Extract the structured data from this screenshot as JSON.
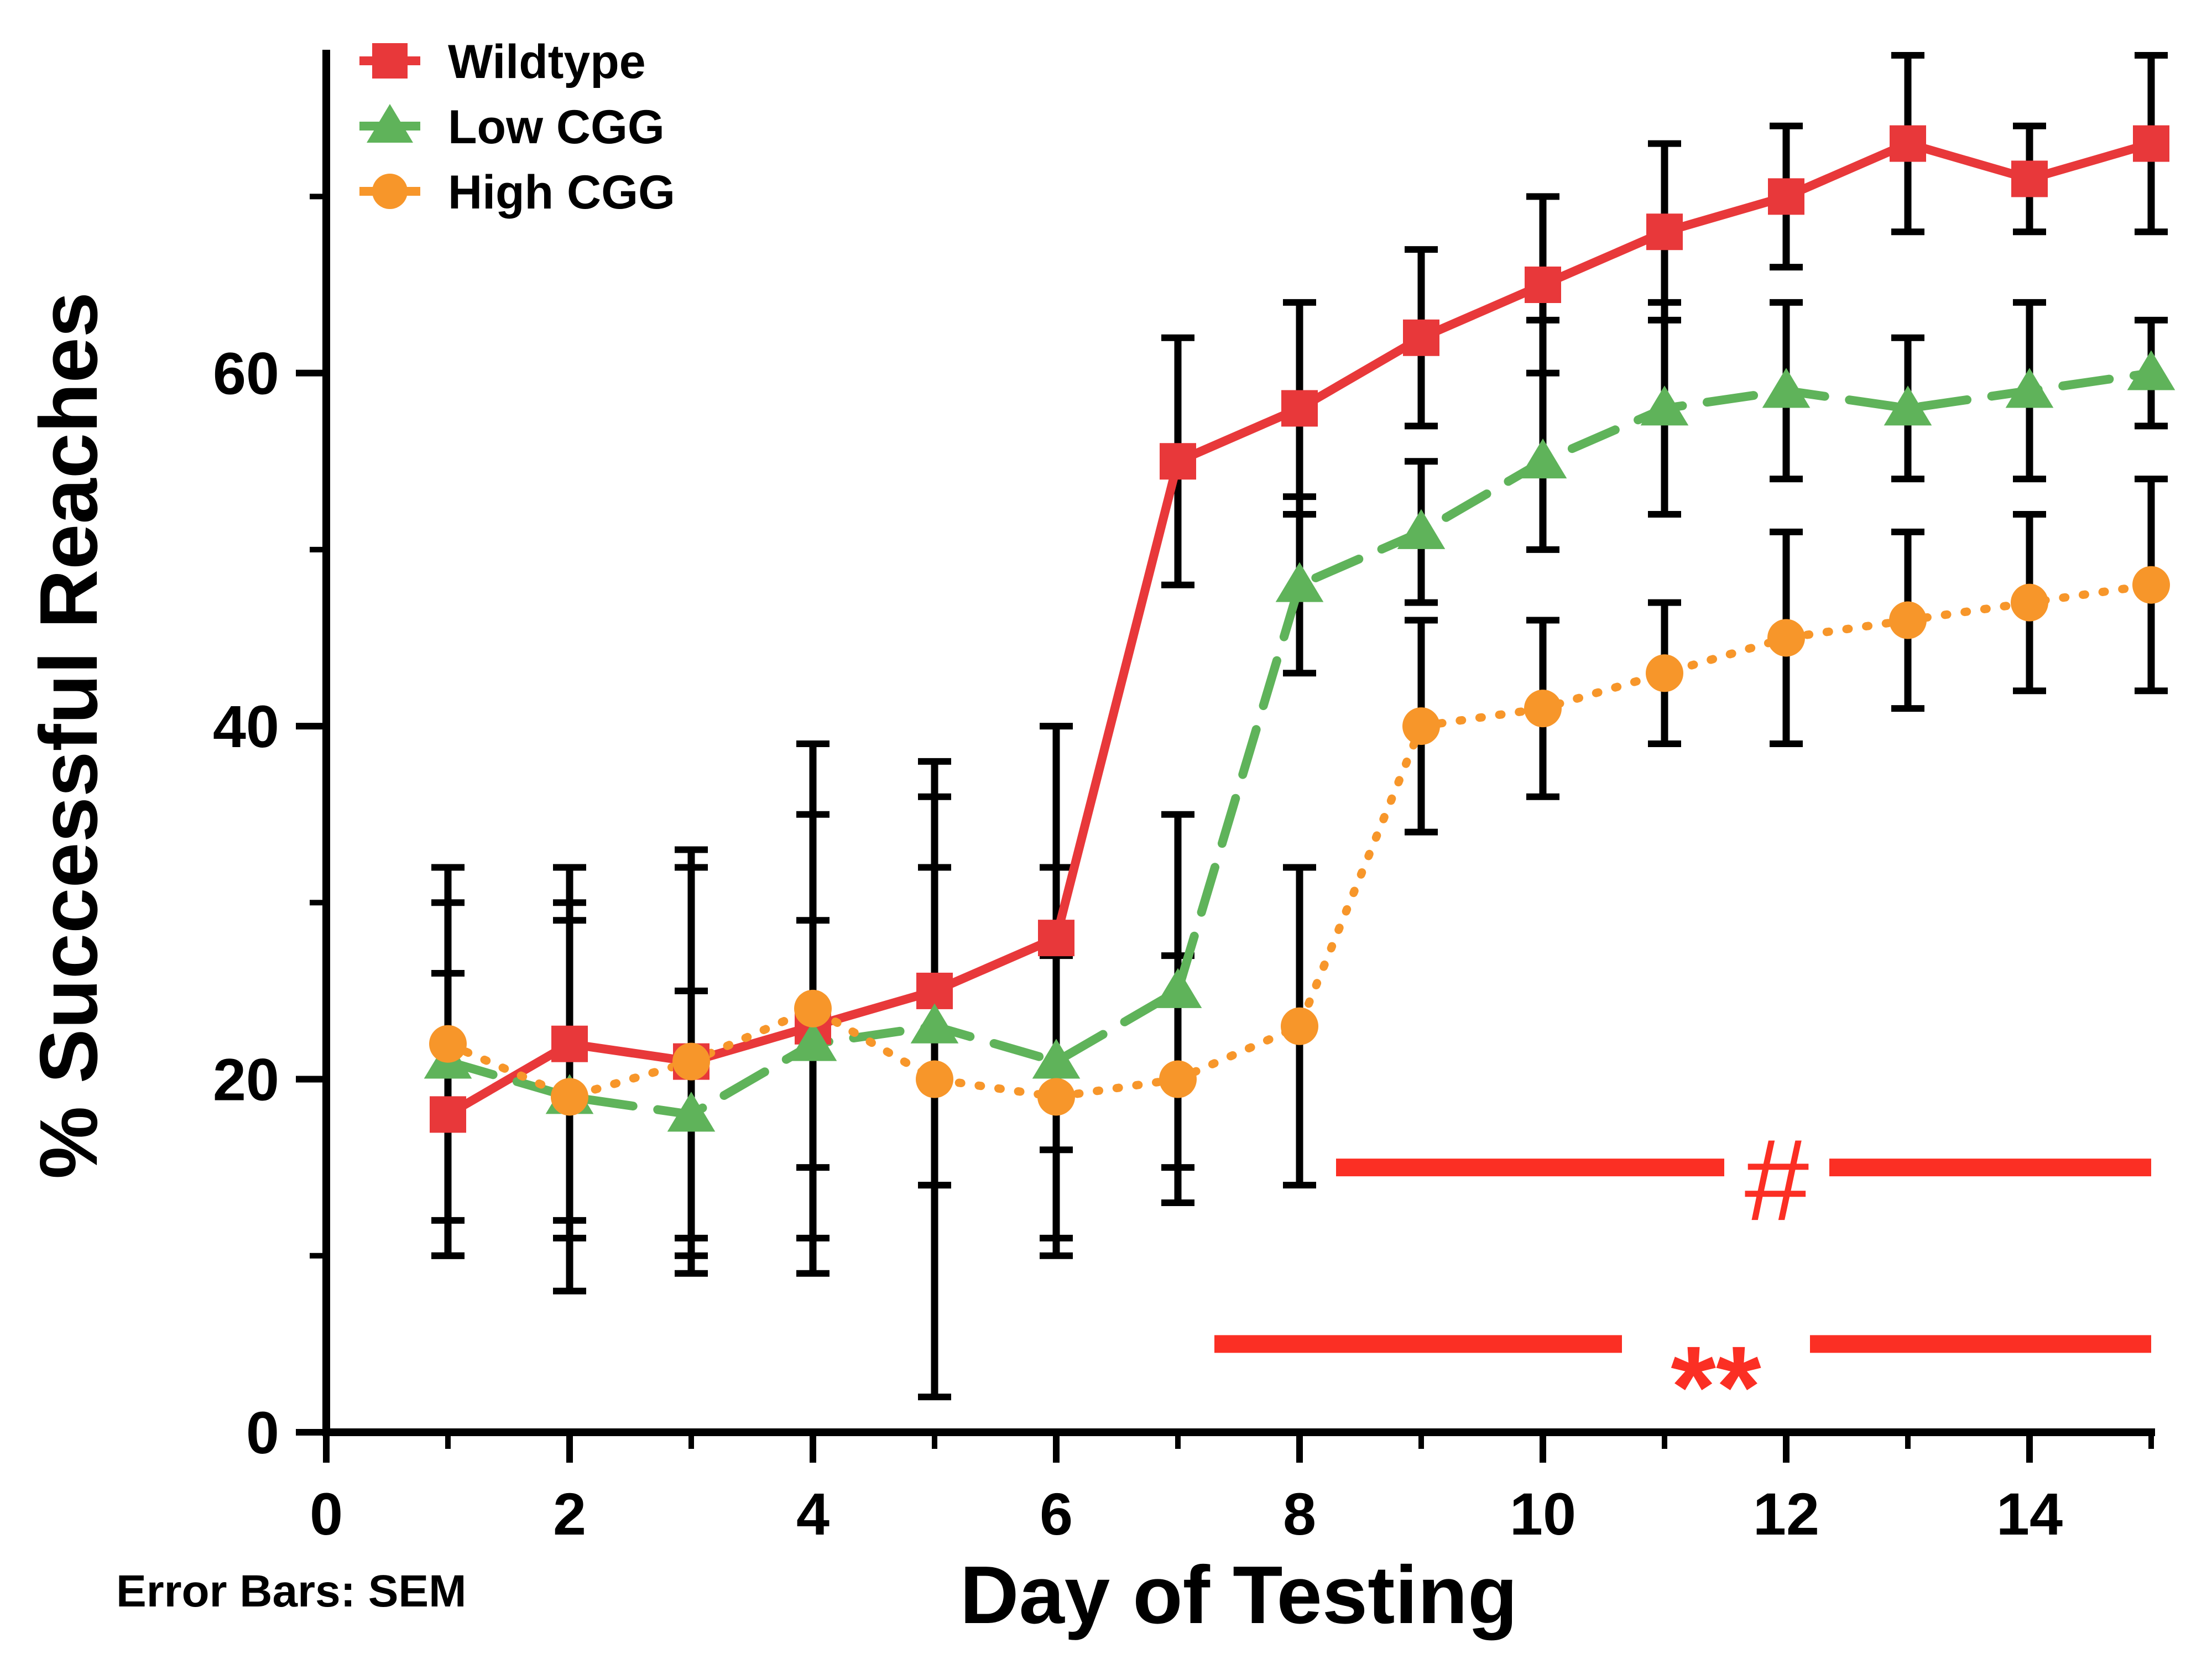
{
  "chart_data": {
    "type": "line",
    "xlabel": "Day of Testing",
    "ylabel": "% Successful Reaches",
    "xlim": [
      0,
      15
    ],
    "ylim": [
      0,
      78
    ],
    "xticks": [
      0,
      2,
      4,
      6,
      8,
      10,
      12,
      14
    ],
    "yticks": [
      0,
      20,
      40,
      60
    ],
    "x_tick_labels": [
      "0",
      "2",
      "4",
      "6",
      "8",
      "10",
      "12",
      "14"
    ],
    "y_tick_labels": [
      "0",
      "20",
      "40",
      "60"
    ],
    "x_minor_ticks": [
      1,
      3,
      5,
      7,
      9,
      11,
      13,
      15
    ],
    "y_minor_ticks": [
      10,
      30,
      50,
      70
    ],
    "grid": false,
    "legend_position": "top-left",
    "x": [
      1,
      2,
      3,
      4,
      5,
      6,
      7,
      8,
      9,
      10,
      11,
      12,
      13,
      14,
      15
    ],
    "series": [
      {
        "name": "Wildtype",
        "color": "#e8383a",
        "marker": "square",
        "line_style": "solid",
        "values": [
          18,
          22,
          21,
          23,
          25,
          28,
          55,
          58,
          62,
          65,
          68,
          70,
          73,
          71,
          73
        ],
        "err_upper": [
          26,
          30,
          32,
          35,
          36,
          32,
          62,
          64,
          67,
          70,
          73,
          74,
          78,
          74,
          78
        ],
        "err_lower": [
          10,
          12,
          10,
          11,
          14,
          16,
          48,
          52,
          57,
          60,
          63,
          66,
          68,
          68,
          68
        ]
      },
      {
        "name": "Low CGG",
        "color": "#5fb35a",
        "marker": "triangle",
        "line_style": "dashed",
        "values": [
          21,
          19,
          18,
          22,
          23,
          21,
          25,
          48,
          51,
          55,
          58,
          59,
          58,
          59,
          60
        ],
        "err_upper": [
          30,
          29,
          25,
          29,
          38,
          40,
          35,
          53,
          55,
          63,
          64,
          64,
          62,
          64,
          63
        ],
        "err_lower": [
          12,
          11,
          11,
          15,
          2,
          11,
          15,
          43,
          47,
          50,
          52,
          54,
          54,
          54,
          57
        ]
      },
      {
        "name": "High CGG",
        "color": "#f7962a",
        "marker": "circle",
        "line_style": "dotted",
        "values": [
          22,
          19,
          21,
          24,
          20,
          19,
          20,
          23,
          40,
          41,
          43,
          45,
          46,
          47,
          48
        ],
        "err_upper": [
          32,
          32,
          33,
          39,
          32,
          27,
          27,
          32,
          46,
          46,
          47,
          51,
          51,
          52,
          54
        ],
        "err_lower": [
          10,
          8,
          9,
          9,
          14,
          10,
          13,
          14,
          34,
          36,
          39,
          39,
          41,
          42,
          42
        ]
      }
    ],
    "annotations": [
      {
        "symbol": "#",
        "color": "#fb2f24",
        "x_from": 8.3,
        "x_to": 15,
        "y": 15
      },
      {
        "symbol": "**",
        "color": "#fb2f24",
        "x_from": 7.3,
        "x_to": 15,
        "y": 5
      }
    ],
    "note": "Error Bars: SEM"
  }
}
